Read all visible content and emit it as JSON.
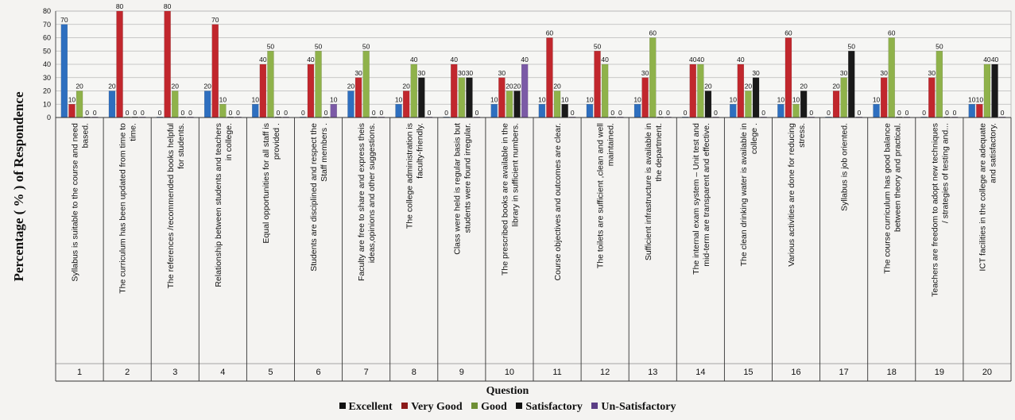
{
  "chart_data": {
    "type": "bar",
    "ylabel": "Percentage ( % ) of Respondence",
    "xlabel": "Question",
    "ylim": [
      0,
      80
    ],
    "yticks": [
      0,
      10,
      20,
      30,
      40,
      50,
      60,
      70,
      80
    ],
    "grid": true,
    "legend_position": "bottom",
    "categories": [
      "1",
      "2",
      "3",
      "4",
      "5",
      "6",
      "7",
      "8",
      "9",
      "10",
      "11",
      "12",
      "13",
      "14",
      "15",
      "16",
      "17",
      "18",
      "19",
      "20"
    ],
    "questions": [
      "Syllabus is suitable to the course and need based.",
      "The curriculum has been updated from time to time.",
      "The references /recommended books helpful for students.",
      "Relationship between students and teachers in college.",
      "Equal opportunities for all staff is provided .",
      "Students are disciplined and respect the Staff members .",
      "Faculty are free to share and express theis ideas,opinions and other suggestions.",
      "The college administration is faculty-friendly.",
      "Class were held is regular basis but students were found irregular.",
      "The prescribed books are available in the library in sufficient numbers.",
      "Course objectives and outcomes are clear.",
      "The toilets are sufficient ,clean and well maintained.",
      "Sufficient infrastructure is available in the department.",
      "The internal exam system – Unit test and mid-term are transparent and effective.",
      "The clean drinking water is available in college .",
      "Various activities are done for reducing stress.",
      "Syllabus is job oriented.",
      "The course curriculum has good balance between theory and practical.",
      "Teachers are freedom to adopt new techniques / strategies of testing and...",
      "ICT facilities in the college are adequate and satisfactory."
    ],
    "series": [
      {
        "name": "Excellent",
        "color": "#2e6fbf",
        "values": [
          70,
          20,
          0,
          20,
          10,
          0,
          20,
          10,
          0,
          10,
          10,
          10,
          10,
          0,
          10,
          10,
          0,
          10,
          0,
          10
        ]
      },
      {
        "name": "Very Good",
        "color": "#c1272d",
        "values": [
          10,
          80,
          80,
          70,
          40,
          40,
          30,
          20,
          40,
          30,
          60,
          50,
          30,
          40,
          40,
          60,
          20,
          30,
          30,
          10
        ]
      },
      {
        "name": "Good",
        "color": "#8fb24a",
        "values": [
          20,
          0,
          20,
          10,
          50,
          50,
          50,
          40,
          30,
          20,
          20,
          40,
          60,
          40,
          20,
          10,
          30,
          60,
          50,
          40
        ]
      },
      {
        "name": "Satisfactory",
        "color": "#1a1a1a",
        "values": [
          0,
          0,
          0,
          0,
          0,
          0,
          0,
          30,
          30,
          20,
          10,
          0,
          0,
          20,
          30,
          20,
          50,
          0,
          0,
          40
        ]
      },
      {
        "name": "Un-Satisfactory",
        "color": "#7b5aa6",
        "values": [
          0,
          0,
          0,
          0,
          0,
          10,
          0,
          0,
          0,
          40,
          0,
          0,
          0,
          0,
          0,
          0,
          0,
          0,
          0,
          0
        ]
      }
    ]
  }
}
